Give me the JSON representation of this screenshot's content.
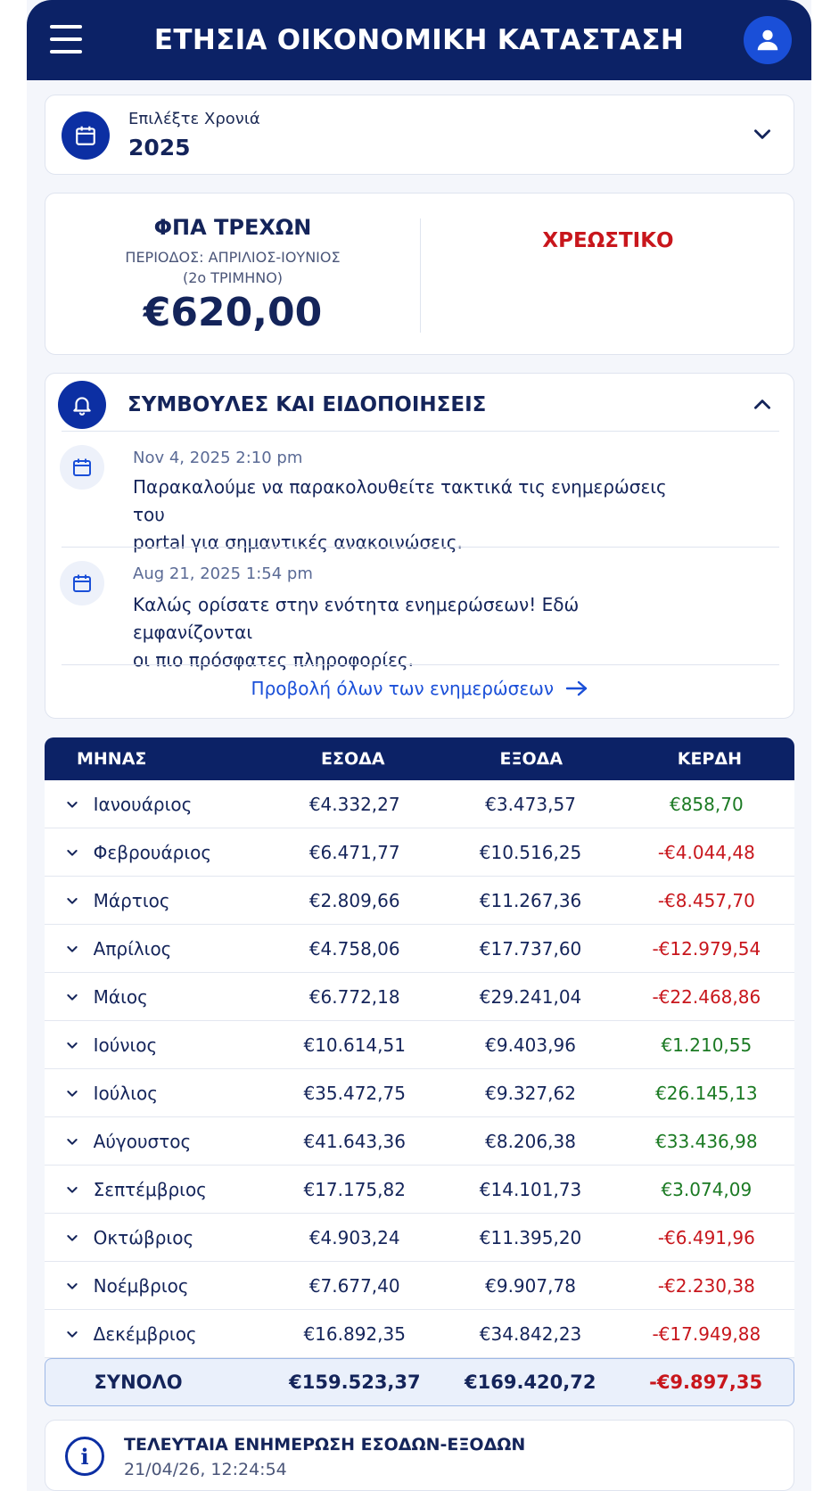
{
  "header": {
    "title": "ΕΤΗΣΙΑ ΟΙΚΟΝΟΜΙΚΗ ΚΑΤΑΣΤΑΣΗ"
  },
  "year_selector": {
    "label": "Επιλέξτε Χρονιά",
    "value": "2025"
  },
  "vat": {
    "title": "ΦΠΑ ΤΡΕΧΩΝ",
    "period": "ΠΕΡΙΟΔΟΣ: ΑΠΡΙΛΙΟΣ-ΙΟΥΝΙΟΣ",
    "quarter": "(2ο ΤΡΙΜΗΝΟ)",
    "amount": "€620,00",
    "status": "ΧΡΕΩΣΤΙΚΟ"
  },
  "notifications": {
    "title": "ΣΥΜΒΟΥΛΕΣ ΚΑΙ ΕΙΔΟΠΟΙΗΣΕΙΣ",
    "items": [
      {
        "date": "Nov 4, 2025 2:10 pm",
        "line1": "Παρακαλούμε να παρακολουθείτε τακτικά τις ενημερώσεις του",
        "line2": "portal για σημαντικές ανακοινώσεις."
      },
      {
        "date": "Aug 21, 2025 1:54 pm",
        "line1": "Καλώς ορίσατε στην ενότητα ενημερώσεων! Εδώ εμφανίζονται",
        "line2": "οι πιο πρόσφατες πληροφορίες."
      }
    ],
    "view_all": "Προβολή όλων των ενημερώσεων"
  },
  "table": {
    "headers": [
      "ΜΗΝΑΣ",
      "ΕΣΟΔΑ",
      "ΕΞΟΔΑ",
      "ΚΕΡΔΗ"
    ],
    "rows": [
      {
        "month": "Ιανουάριος",
        "income": "€4.332,27",
        "expenses": "€3.473,57",
        "profit": "€858,70"
      },
      {
        "month": "Φεβρουάριος",
        "income": "€6.471,77",
        "expenses": "€10.516,25",
        "profit": "-€4.044,48"
      },
      {
        "month": "Μάρτιος",
        "income": "€2.809,66",
        "expenses": "€11.267,36",
        "profit": "-€8.457,70"
      },
      {
        "month": "Απρίλιος",
        "income": "€4.758,06",
        "expenses": "€17.737,60",
        "profit": "-€12.979,54"
      },
      {
        "month": "Μάιος",
        "income": "€6.772,18",
        "expenses": "€29.241,04",
        "profit": "-€22.468,86"
      },
      {
        "month": "Ιούνιος",
        "income": "€10.614,51",
        "expenses": "€9.403,96",
        "profit": "€1.210,55"
      },
      {
        "month": "Ιούλιος",
        "income": "€35.472,75",
        "expenses": "€9.327,62",
        "profit": "€26.145,13"
      },
      {
        "month": "Αύγουστος",
        "income": "€41.643,36",
        "expenses": "€8.206,38",
        "profit": "€33.436,98"
      },
      {
        "month": "Σεπτέμβριος",
        "income": "€17.175,82",
        "expenses": "€14.101,73",
        "profit": "€3.074,09"
      },
      {
        "month": "Οκτώβριος",
        "income": "€4.903,24",
        "expenses": "€11.395,20",
        "profit": "-€6.491,96"
      },
      {
        "month": "Νοέμβριος",
        "income": "€7.677,40",
        "expenses": "€9.907,78",
        "profit": "-€2.230,38"
      },
      {
        "month": "Δεκέμβριος",
        "income": "€16.892,35",
        "expenses": "€34.842,23",
        "profit": "-€17.949,88"
      }
    ],
    "total": {
      "label": "ΣΥΝΟΛΟ",
      "income": "€159.523,37",
      "expenses": "€169.420,72",
      "profit": "-€9.897,35"
    }
  },
  "last_update": {
    "title": "ΤΕΛΕΥΤΑΙΑ ΕΝΗΜΕΡΩΣΗ ΕΣΟΔΩΝ-ΕΞΟΔΩΝ",
    "time": "21/04/26, 12:24:54"
  },
  "colors": {
    "navy": "#0c2266",
    "accent": "#1a4fd8",
    "positive": "#1b7a23",
    "negative": "#c8161c"
  }
}
